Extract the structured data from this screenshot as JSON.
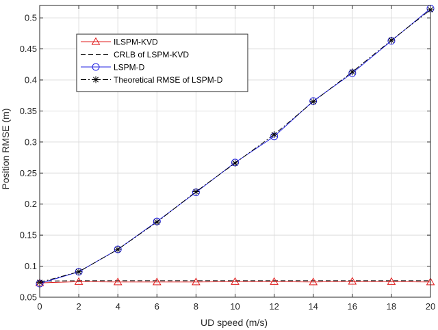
{
  "chart_data": {
    "type": "line",
    "xlabel": "UD speed (m/s)",
    "ylabel": "Position RMSE (m)",
    "xlim": [
      0,
      20
    ],
    "ylim": [
      0.05,
      0.52
    ],
    "x_ticks": [
      "0",
      "2",
      "4",
      "6",
      "8",
      "10",
      "12",
      "14",
      "16",
      "18",
      "20"
    ],
    "y_ticks": [
      "0.05",
      "0.1",
      "0.15",
      "0.2",
      "0.25",
      "0.3",
      "0.35",
      "0.4",
      "0.45",
      "0.5"
    ],
    "grid": true,
    "legend_position": "upper-left",
    "x": [
      0,
      2,
      4,
      6,
      8,
      10,
      12,
      14,
      16,
      18,
      20
    ],
    "series": [
      {
        "name": "ILSPM-KVD",
        "values": [
          0.073,
          0.075,
          0.0745,
          0.0745,
          0.0745,
          0.075,
          0.075,
          0.0745,
          0.0755,
          0.075,
          0.0745
        ],
        "color": "#e01b1b",
        "dash": "solid",
        "marker": "triangle"
      },
      {
        "name": "CRLB of LSPM-KVD",
        "values": [
          0.076,
          0.0765,
          0.0765,
          0.0765,
          0.0765,
          0.0765,
          0.0765,
          0.0765,
          0.0765,
          0.0765,
          0.0765
        ],
        "color": "#000000",
        "dash": "dashed",
        "marker": "none"
      },
      {
        "name": "LSPM-D",
        "values": [
          0.072,
          0.091,
          0.127,
          0.172,
          0.219,
          0.267,
          0.309,
          0.366,
          0.411,
          0.463,
          0.515
        ],
        "color": "#1f1fe0",
        "dash": "solid",
        "marker": "circle"
      },
      {
        "name": "Theoretical RMSE of LSPM-D",
        "values": [
          0.074,
          0.091,
          0.127,
          0.171,
          0.22,
          0.266,
          0.312,
          0.365,
          0.413,
          0.464,
          0.513
        ],
        "color": "#000000",
        "dash": "dashdot",
        "marker": "star"
      }
    ]
  }
}
